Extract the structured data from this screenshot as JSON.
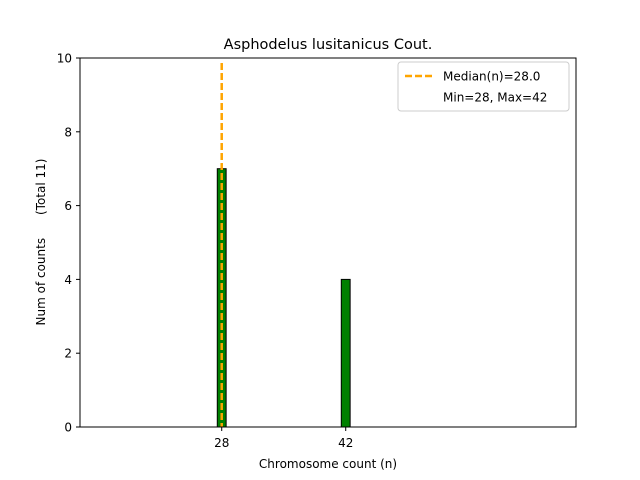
{
  "chart_data": {
    "type": "bar",
    "title": "Asphodelus lusitanicus Cout.",
    "xlabel": "Chromosome count (n)",
    "ylabel": "Num of counts      (Total 11)",
    "xlim": [
      12,
      68
    ],
    "ylim": [
      0,
      10
    ],
    "x_ticks": [
      28,
      42
    ],
    "y_ticks": [
      0,
      2,
      4,
      6,
      8,
      10
    ],
    "bar_width": 1,
    "bars": [
      {
        "x": 28,
        "value": 7
      },
      {
        "x": 42,
        "value": 4
      }
    ],
    "baseline_range": [
      12,
      46
    ],
    "median": 28.0,
    "legend": {
      "placement": "upper right",
      "entries": [
        "Median(n)=28.0",
        "Min=28, Max=42"
      ]
    },
    "colors": {
      "bar_fill": "#008000",
      "bar_edge": "#000000",
      "median_line": "#ffa500"
    }
  }
}
